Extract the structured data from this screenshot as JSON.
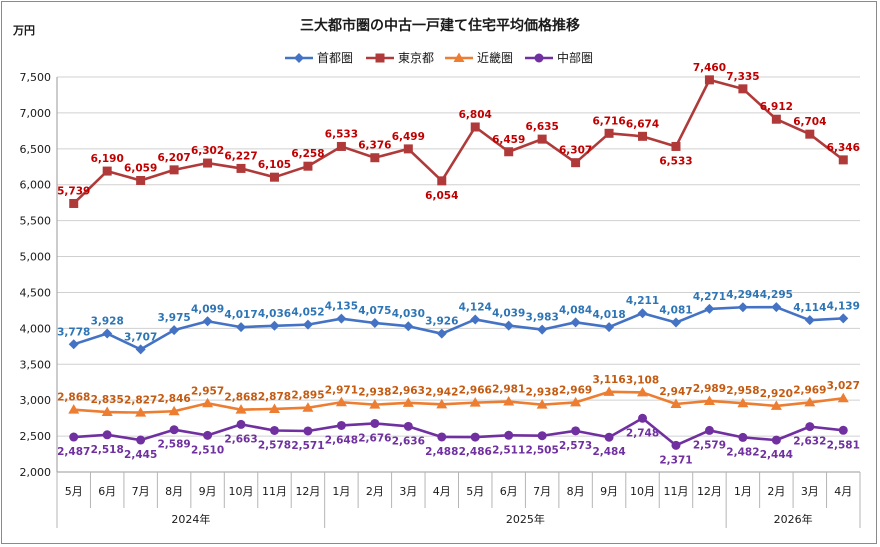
{
  "chart_data": {
    "type": "line",
    "title": "三大都市圏の中古一戸建て住宅平均価格推移",
    "ylabel": "万円",
    "ylim": [
      2000,
      7500
    ],
    "yticks": [
      2000,
      2500,
      3000,
      3500,
      4000,
      4500,
      5000,
      5500,
      6000,
      6500,
      7000,
      7500
    ],
    "ytick_labels": [
      "2,000",
      "2,500",
      "3,000",
      "3,500",
      "4,000",
      "4,500",
      "5,000",
      "5,500",
      "6,000",
      "6,500",
      "7,000",
      "7,500"
    ],
    "grid": true,
    "legend_position": "top-center",
    "categories": [
      "5月",
      "6月",
      "7月",
      "8月",
      "9月",
      "10月",
      "11月",
      "12月",
      "1月",
      "2月",
      "3月",
      "4月",
      "5月",
      "6月",
      "7月",
      "8月",
      "9月",
      "10月",
      "11月",
      "12月",
      "1月",
      "2月",
      "3月",
      "4月"
    ],
    "year_groups": [
      {
        "label": "2024年",
        "count": 8
      },
      {
        "label": "2025年",
        "count": 12
      },
      {
        "label": "2026年",
        "count": 4
      }
    ],
    "series": [
      {
        "name": "首都圏",
        "color": "#4472c4",
        "label_color": "#2e75b6",
        "marker": "diamond",
        "label_position": "above",
        "values": [
          3778,
          3928,
          3707,
          3975,
          4099,
          4017,
          4036,
          4052,
          4135,
          4075,
          4030,
          3926,
          4124,
          4039,
          3983,
          4084,
          4018,
          4211,
          4081,
          4271,
          4294,
          4295,
          4114,
          4139
        ],
        "labels": [
          "3,778",
          "3,928",
          "3,707",
          "3,975",
          "4,099",
          "4,017",
          "4,036",
          "4,052",
          "4,135",
          "4,075",
          "4,030",
          "3,926",
          "4,124",
          "4,039",
          "3,983",
          "4,084",
          "4,018",
          "4,211",
          "4,081",
          "4,271",
          "4,294",
          "4,295",
          "4,114",
          "4,139"
        ]
      },
      {
        "name": "東京都",
        "color": "#b03a3a",
        "label_color": "#c00000",
        "marker": "square",
        "label_position": "above",
        "values": [
          5739,
          6190,
          6059,
          6207,
          6302,
          6227,
          6105,
          6258,
          6533,
          6376,
          6499,
          6054,
          6804,
          6459,
          6635,
          6307,
          6716,
          6674,
          6533,
          7460,
          7335,
          6912,
          6704,
          6346
        ],
        "labels": [
          "5,739",
          "6,190",
          "6,059",
          "6,207",
          "6,302",
          "6,227",
          "6,105",
          "6,258",
          "6,533",
          "6,376",
          "6,499",
          "6,054",
          "6,804",
          "6,459",
          "6,635",
          "6,307",
          "6,716",
          "6,674",
          "6,533",
          "7,460",
          "7,335",
          "6,912",
          "6,704",
          "6,346"
        ]
      },
      {
        "name": "近畿圏",
        "color": "#ed7d31",
        "label_color": "#c55a11",
        "marker": "triangle",
        "label_position": "above",
        "values": [
          2868,
          2835,
          2827,
          2846,
          2957,
          2868,
          2878,
          2895,
          2971,
          2938,
          2963,
          2942,
          2966,
          2981,
          2938,
          2969,
          3116,
          3108,
          2947,
          2989,
          2958,
          2920,
          2969,
          3027
        ],
        "labels": [
          "2,868",
          "2,835",
          "2,827",
          "2,846",
          "2,957",
          "2,868",
          "2,878",
          "2,895",
          "2,971",
          "2,938",
          "2,963",
          "2,942",
          "2,966",
          "2,981",
          "2,938",
          "2,969",
          "3,116",
          "3,108",
          "2,947",
          "2,989",
          "2,958",
          "2,920",
          "2,969",
          "3,027"
        ]
      },
      {
        "name": "中部圏",
        "color": "#7030a0",
        "label_color": "#7030a0",
        "marker": "circle",
        "label_position": "below",
        "values": [
          2487,
          2518,
          2445,
          2589,
          2510,
          2663,
          2578,
          2571,
          2648,
          2676,
          2636,
          2488,
          2486,
          2511,
          2505,
          2573,
          2484,
          2748,
          2371,
          2579,
          2482,
          2444,
          2632,
          2581
        ],
        "labels": [
          "2,487",
          "2,518",
          "2,445",
          "2,589",
          "2,510",
          "2,663",
          "2,578",
          "2,571",
          "2,648",
          "2,676",
          "2,636",
          "2,488",
          "2,486",
          "2,511",
          "2,505",
          "2,573",
          "2,484",
          "2,748",
          "2,371",
          "2,579",
          "2,482",
          "2,444",
          "2,632",
          "2,581"
        ]
      }
    ]
  }
}
